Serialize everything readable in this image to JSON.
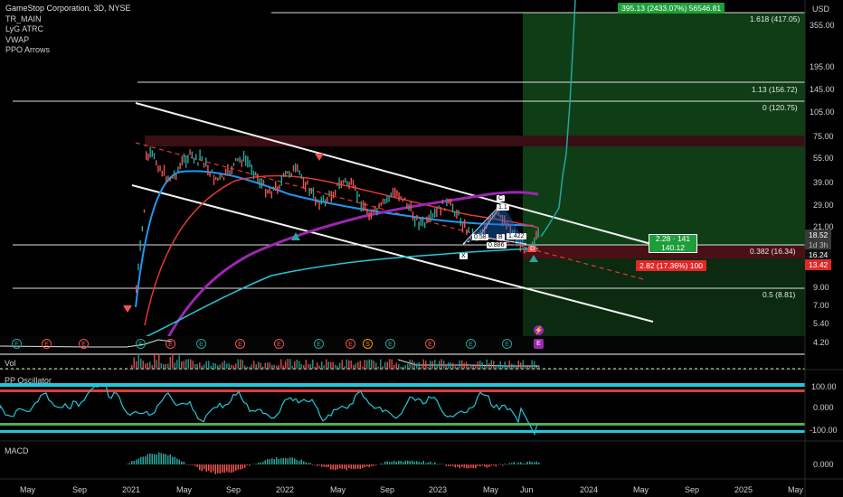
{
  "chart_title": "GameStop Corporation, 3D, NYSE",
  "indicators": [
    "TR_MAIN",
    "LyG ATRC",
    "VWAP",
    "PPO Arrows"
  ],
  "currency": "USD",
  "price_axis": [
    "355.00",
    "195.00",
    "145.00",
    "105.00",
    "75.00",
    "55.00",
    "39.00",
    "29.00",
    "21.00",
    "9.00",
    "7.00",
    "5.40",
    "4.20"
  ],
  "price_tags": {
    "last_price": "18.52",
    "countdown": "1d 3h",
    "level_16": "16.24",
    "level_13": "13.42"
  },
  "fib_levels": [
    "1.618 (417.05)",
    "1.13 (156.72)",
    "0 (120.75)",
    "0.382 (16.34)",
    "0.5 (8.81)"
  ],
  "target_box": "395.13 (2433.07%) 56546.81",
  "stop_box": "2.82 (17.36%) 100",
  "rr_label_line1": "2.28 · 141",
  "rr_label_line2": "140.12",
  "pattern_labels": {
    "c": "C",
    "b": "B",
    "x": "X",
    "d": "D",
    "cb": "1.1",
    "xb": "0.58",
    "xd": "0.886",
    "bd": "1.422"
  },
  "event_markers": {
    "earnings": "E",
    "split": "S"
  },
  "panels": {
    "volume": "Vol",
    "oscillator": "PP Oscillator",
    "macd": "MACD"
  },
  "osc_axis": [
    "100.00",
    "0.000",
    "-100.00"
  ],
  "macd_axis": [
    "0.000"
  ],
  "time_axis": [
    "May",
    "Sep",
    "2021",
    "May",
    "Sep",
    "2022",
    "May",
    "Sep",
    "2023",
    "May",
    "Jun",
    "2024",
    "May",
    "Sep",
    "2025",
    "May"
  ],
  "colors": {
    "up": "#26a69a",
    "down": "#ef5350",
    "target_green": "#1e9e3a",
    "stop_red": "#e02828",
    "purple_ma": "#9c27b0",
    "blue_ma": "#2196f3",
    "red_ma": "#e53935",
    "cyan_ma": "#26c6da"
  }
}
